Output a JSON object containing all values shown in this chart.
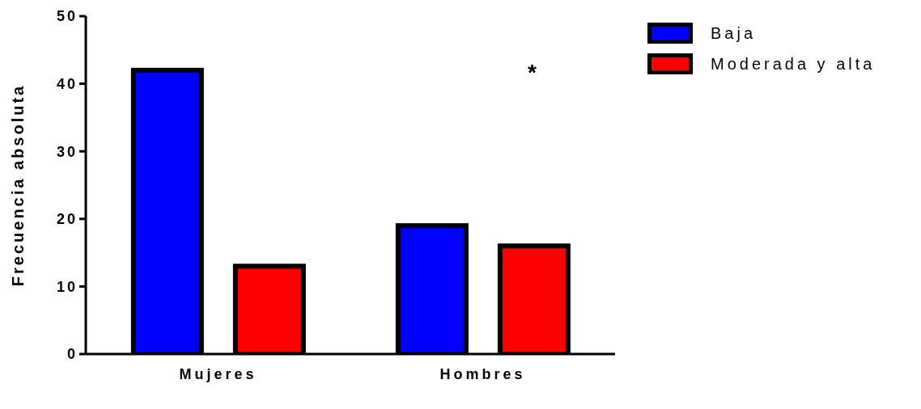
{
  "chart_data": {
    "type": "bar",
    "ylabel": "Frecuencia absoluta",
    "categories": [
      "Mujeres",
      "Hombres"
    ],
    "series": [
      {
        "name": "Baja",
        "color": "#0000ff",
        "values": [
          42,
          19
        ]
      },
      {
        "name": "Moderada y alta",
        "color": "#ff0000",
        "values": [
          13,
          16
        ]
      }
    ],
    "ylim": [
      0,
      50
    ],
    "yticks": [
      0,
      10,
      20,
      30,
      40,
      50
    ],
    "grid": false,
    "legend": "top right",
    "annotations": [
      "*"
    ]
  }
}
